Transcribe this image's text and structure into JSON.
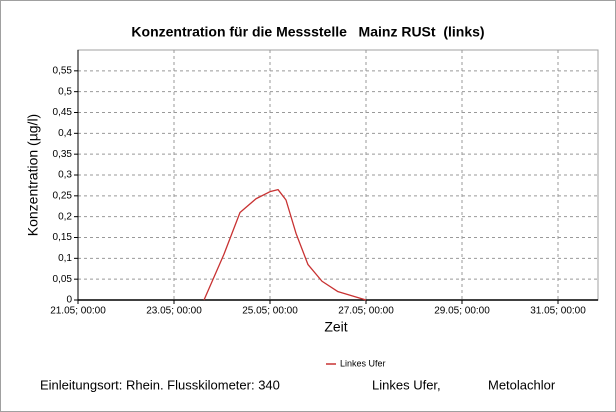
{
  "chart_data": {
    "type": "line",
    "title": "Konzentration für die Messstelle   Mainz RUSt  (links)",
    "x_label": "Zeit",
    "y_label": "Konzentration (µg/l)",
    "x": [
      "23.05; 15:00",
      "24.05; 01:00",
      "24.05; 09:00",
      "24.05; 17:00",
      "25.05; 00:00",
      "25.05; 04:00",
      "25.05; 08:00",
      "25.05; 13:00",
      "25.05; 19:00",
      "26.05; 02:00",
      "26.05; 10:00",
      "27.05; 00:00"
    ],
    "series": [
      {
        "name": "Linkes Ufer",
        "color": "#c83232",
        "values": [
          0,
          0.11,
          0.21,
          0.243,
          0.26,
          0.265,
          0.24,
          0.16,
          0.085,
          0.045,
          0.02,
          0
        ]
      }
    ],
    "xlim": [
      "21.05; 00:00",
      "31.05; 20:00"
    ],
    "xticks": [
      "21.05; 00:00",
      "23.05; 00:00",
      "25.05; 00:00",
      "27.05; 00:00",
      "29.05; 00:00",
      "31.05; 00:00"
    ],
    "ylim": [
      0,
      0.6
    ],
    "yticks": [
      0,
      {
        "value": 0.05,
        "label": "0,05"
      },
      {
        "value": 0.1,
        "label": "0,1"
      },
      {
        "value": 0.15,
        "label": "0,15"
      },
      {
        "value": 0.2,
        "label": "0,2"
      },
      {
        "value": 0.25,
        "label": "0,25"
      },
      {
        "value": 0.3,
        "label": "0,3"
      },
      {
        "value": 0.35,
        "label": "0,35"
      },
      {
        "value": 0.4,
        "label": "0,4"
      },
      {
        "value": 0.45,
        "label": "0,45"
      },
      {
        "value": 0.5,
        "label": "0,5"
      },
      {
        "value": 0.55,
        "label": "0,55"
      }
    ],
    "grid": true,
    "legend": "bottom",
    "footer": [
      "Einleitungsort: Rhein. Flusskilometer: 340",
      "Linkes Ufer,",
      "Metolachlor"
    ]
  }
}
